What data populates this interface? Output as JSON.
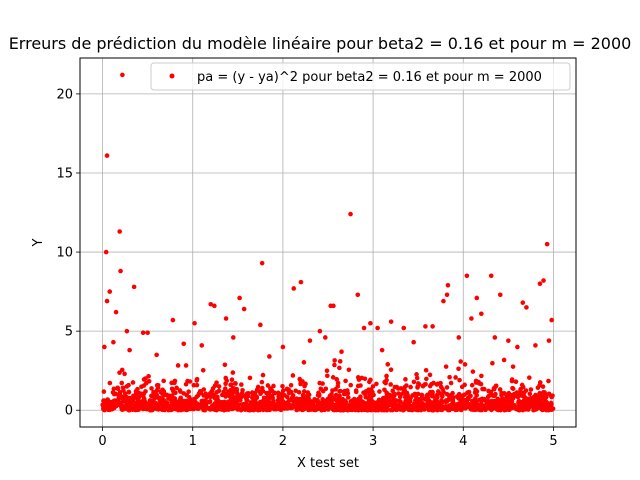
{
  "chart_data": {
    "type": "scatter",
    "title": "Erreurs de prédiction du modèle linéaire pour beta2 = 0.16 et pour m = 2000",
    "xlabel": "X test set",
    "ylabel": "Y",
    "xlim": [
      -0.25,
      5.25
    ],
    "ylim": [
      -1.06,
      22.27
    ],
    "xticks": [
      0,
      1,
      2,
      3,
      4,
      5
    ],
    "yticks": [
      0,
      5,
      10,
      15,
      20
    ],
    "grid": true,
    "legend_position": "top-right",
    "marker_color": "#ff0000",
    "series": [
      {
        "name": "pa = (y - ya)^2 pour beta2 = 0.16 et pour m = 2000",
        "points": [
          [
            0.05,
            16.1
          ],
          [
            0.22,
            21.2
          ],
          [
            0.04,
            10.0
          ],
          [
            0.19,
            11.3
          ],
          [
            0.05,
            6.9
          ],
          [
            0.08,
            7.5
          ],
          [
            0.2,
            8.8
          ],
          [
            0.35,
            7.8
          ],
          [
            0.15,
            6.2
          ],
          [
            0.02,
            4.0
          ],
          [
            0.27,
            5.0
          ],
          [
            0.45,
            4.9
          ],
          [
            0.5,
            4.9
          ],
          [
            0.3,
            3.8
          ],
          [
            0.12,
            4.3
          ],
          [
            0.78,
            5.7
          ],
          [
            1.02,
            5.5
          ],
          [
            1.2,
            6.7
          ],
          [
            1.24,
            6.6
          ],
          [
            1.37,
            5.8
          ],
          [
            1.52,
            7.1
          ],
          [
            1.57,
            6.4
          ],
          [
            1.75,
            5.4
          ],
          [
            1.77,
            9.3
          ],
          [
            1.1,
            4.1
          ],
          [
            1.45,
            4.6
          ],
          [
            0.9,
            4.2
          ],
          [
            2.12,
            7.7
          ],
          [
            2.2,
            8.1
          ],
          [
            2.41,
            5.0
          ],
          [
            2.53,
            6.6
          ],
          [
            2.56,
            6.6
          ],
          [
            2.47,
            4.6
          ],
          [
            2.3,
            4.4
          ],
          [
            2.75,
            12.4
          ],
          [
            2.83,
            7.3
          ],
          [
            2.9,
            5.2
          ],
          [
            2.97,
            5.5
          ],
          [
            3.05,
            5.2
          ],
          [
            3.2,
            5.6
          ],
          [
            3.34,
            5.2
          ],
          [
            3.58,
            5.3
          ],
          [
            3.66,
            5.3
          ],
          [
            3.45,
            4.3
          ],
          [
            3.78,
            6.9
          ],
          [
            3.82,
            7.3
          ],
          [
            3.83,
            7.9
          ],
          [
            3.95,
            4.6
          ],
          [
            4.04,
            8.5
          ],
          [
            4.15,
            7.1
          ],
          [
            4.2,
            6.1
          ],
          [
            4.09,
            5.8
          ],
          [
            4.31,
            8.5
          ],
          [
            4.41,
            7.3
          ],
          [
            4.5,
            4.4
          ],
          [
            4.66,
            6.8
          ],
          [
            4.7,
            6.5
          ],
          [
            4.85,
            8.0
          ],
          [
            4.89,
            8.2
          ],
          [
            4.93,
            10.5
          ],
          [
            4.98,
            5.7
          ],
          [
            4.95,
            4.4
          ],
          [
            4.8,
            4.1
          ],
          [
            4.6,
            4.0
          ],
          [
            4.35,
            4.6
          ],
          [
            3.1,
            3.8
          ],
          [
            2.0,
            4.0
          ],
          [
            1.85,
            3.4
          ],
          [
            0.6,
            3.5
          ],
          [
            2.65,
            3.7
          ]
        ]
      }
    ],
    "dense_cluster": {
      "x_range": [
        0,
        5
      ],
      "y_range": [
        0,
        3.5
      ],
      "count": 1930,
      "distribution": "concentrated near 0, thinning toward 3.5"
    }
  }
}
